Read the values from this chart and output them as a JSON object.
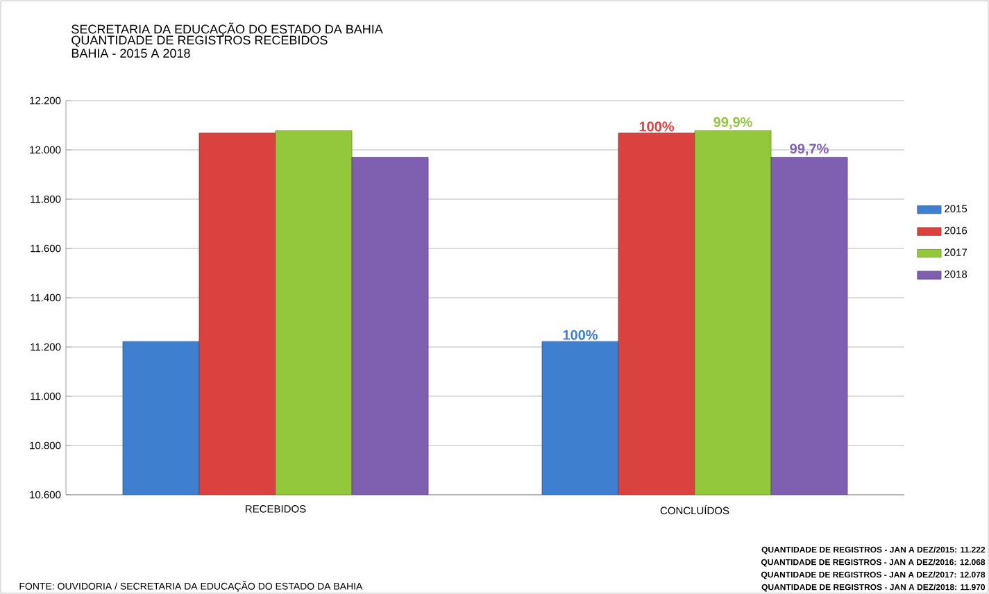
{
  "chart_data": {
    "type": "bar",
    "title": "SECRETARIA  DA EDUCAÇÃO DO ESTADO DA BAHIA",
    "subtitle": "QUANTIDADE  DE REGISTROS  RECEBIDOS",
    "categories": [
      "RECEBIDOS",
      "CONCLUÍDOS"
    ],
    "series": [
      {
        "name": "2015",
        "color": "#3f7fcf",
        "values": [
          11222,
          11222
        ]
      },
      {
        "name": "2016",
        "color": "#d9423e",
        "values": [
          12068,
          12068
        ]
      },
      {
        "name": "2017",
        "color": "#94c83c",
        "values": [
          12078,
          12078
        ]
      },
      {
        "name": "2018",
        "color": "#7f5fb0",
        "values": [
          11970,
          11970
        ]
      }
    ],
    "ylim": [
      10600,
      12200
    ],
    "yticks": [
      {
        "value": 10600,
        "label": "10.600"
      },
      {
        "value": 10800,
        "label": "10.800"
      },
      {
        "value": 11000,
        "label": "11.000"
      },
      {
        "value": 11200,
        "label": "11.200"
      },
      {
        "value": 11400,
        "label": "11.400"
      },
      {
        "value": 11600,
        "label": "11.600"
      },
      {
        "value": 11800,
        "label": "11.800"
      },
      {
        "value": 12000,
        "label": "12.000"
      },
      {
        "value": 12200,
        "label": "12.200"
      }
    ],
    "grid": "y",
    "legend": "right",
    "annotations": [
      "BAHIA - 2015 A 2018",
      "FONTE: OUVIDORIA / SECRETARIA DA EDUCAÇÃO DO ESTADO DA BAHIA",
      "QUANTIDADE DE REGISTROS - JAN A DEZ/2015: 11.222",
      "QUANTIDADE DE REGISTROS - JAN A DEZ/2016: 12.068",
      "QUANTIDADE DE REGISTROS - JAN A DEZ/2017: 12.078",
      "QUANTIDADE DE REGISTROS - JAN A DEZ/2018: 11.970",
      "100%",
      "100%",
      "99,9%",
      "99,7%"
    ]
  }
}
